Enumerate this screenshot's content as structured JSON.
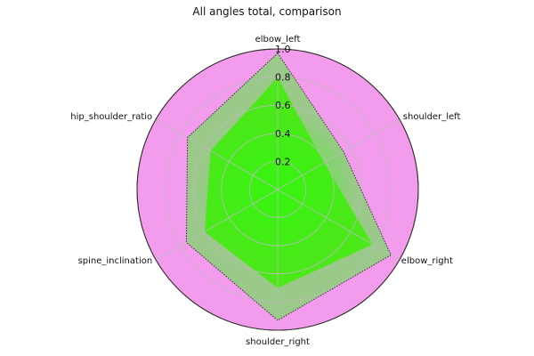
{
  "chart_data": {
    "type": "radar",
    "title": "All angles total, comparison",
    "axes": [
      "elbow_left",
      "shoulder_left",
      "elbow_right",
      "shoulder_right",
      "spine_inclination",
      "hip_shoulder_ratio"
    ],
    "radial_range": [
      0,
      1.0
    ],
    "radial_ticks": [
      0.2,
      0.4,
      0.6,
      0.8,
      1.0
    ],
    "radial_tick_labels": [
      "0.2",
      "0.4",
      "0.6",
      "0.8",
      "1.0"
    ],
    "grid": true,
    "series": [
      {
        "values": [
          0.97,
          0.54,
          0.93,
          0.93,
          0.75,
          0.74
        ],
        "fill_color": "#9bc98a",
        "line_color": "#333333",
        "line_style": "dotted"
      },
      {
        "values": [
          0.8,
          0.38,
          0.78,
          0.7,
          0.6,
          0.55
        ],
        "fill_color": "#4be81a"
      }
    ],
    "background_color": "#f39bed",
    "core_fill_color": "#35f50f"
  }
}
